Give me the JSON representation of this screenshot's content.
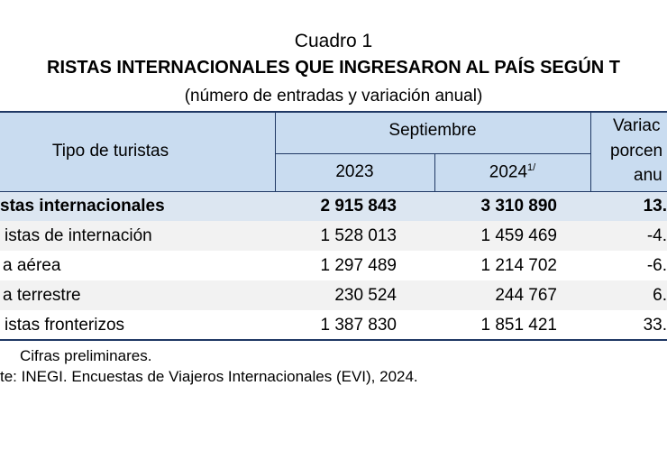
{
  "header": {
    "number": "Cuadro 1",
    "title": "RISTAS INTERNACIONALES QUE INGRESARON AL PAÍS SEGÚN T",
    "subtitle": "(número de entradas y variación anual)"
  },
  "table": {
    "columns": {
      "type": "Tipo de turistas",
      "month": "Septiembre",
      "year1": "2023",
      "year2": "2024",
      "year2_note": "1/",
      "variation": [
        "Variac",
        "porcen",
        "anu"
      ]
    },
    "rows": [
      [
        "stas internacionales",
        "2 915 843",
        "3 310 890",
        "13."
      ],
      [
        "istas de internación",
        "1 528 013",
        "1 459 469",
        "-4."
      ],
      [
        "a aérea",
        "1 297 489",
        "1 214 702",
        "-6."
      ],
      [
        "a terrestre",
        "230 524",
        "244 767",
        "6."
      ],
      [
        "istas fronterizos",
        "1 387 830",
        "1 851 421",
        "33."
      ]
    ]
  },
  "footnotes": [
    "Cifras preliminares.",
    "te: INEGI. Encuestas de Viajeros Internacionales (EVI), 2024."
  ]
}
